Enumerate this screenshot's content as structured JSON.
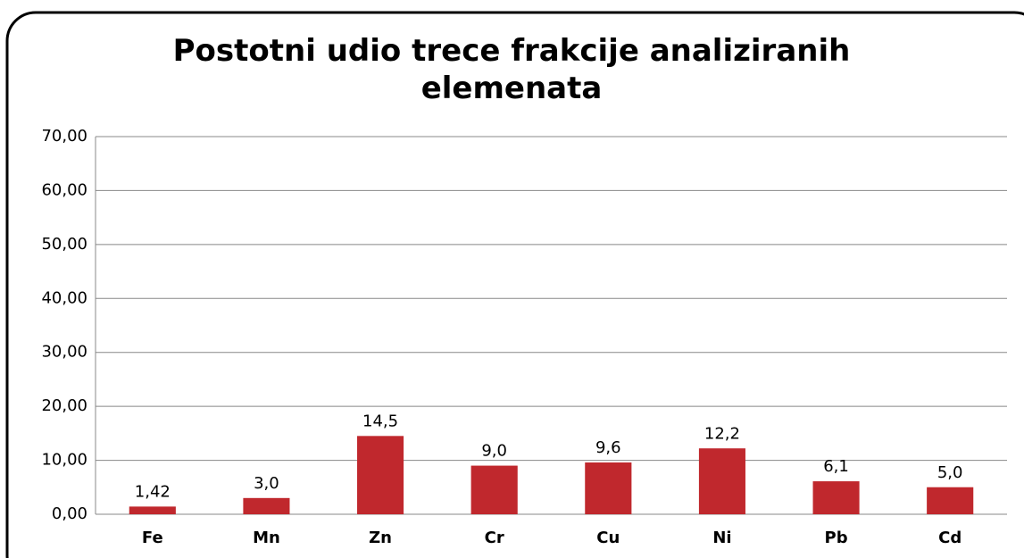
{
  "chart_data": {
    "type": "bar",
    "title": "Postotni udio trece frakcije analiziranih elemenata",
    "categories": [
      "Fe",
      "Mn",
      "Zn",
      "Cr",
      "Cu",
      "Ni",
      "Pb",
      "Cd"
    ],
    "values": [
      1.42,
      3.0,
      14.5,
      9.0,
      9.6,
      12.2,
      6.1,
      5.0
    ],
    "value_labels": [
      "1,42",
      "3,0",
      "14,5",
      "9,0",
      "9,6",
      "12,2",
      "6,1",
      "5,0"
    ],
    "color": "#c0282d",
    "ylim": [
      0,
      70
    ],
    "yticks": [
      {
        "value": 0,
        "label": "0,00"
      },
      {
        "value": 10,
        "label": "10,00"
      },
      {
        "value": 20,
        "label": "20,00"
      },
      {
        "value": 30,
        "label": "30,00"
      },
      {
        "value": 40,
        "label": "40,00"
      },
      {
        "value": 50,
        "label": "50,00"
      },
      {
        "value": 60,
        "label": "60,00"
      },
      {
        "value": 70,
        "label": "70,00"
      }
    ],
    "grid": true
  }
}
